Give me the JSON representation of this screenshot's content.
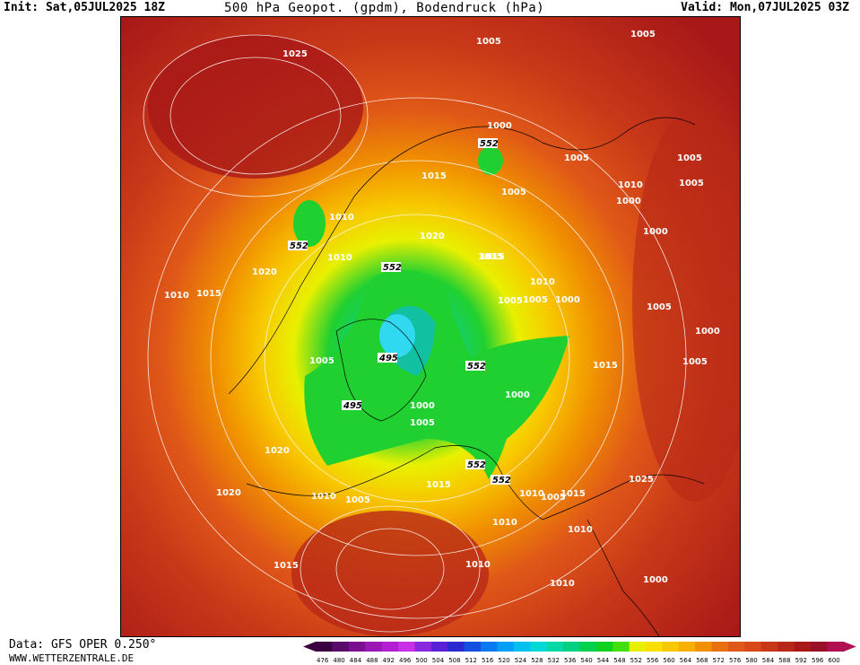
{
  "header": {
    "init": "Init: Sat,05JUL2025 18Z",
    "title": "500 hPa Geopot. (gpdm), Bodendruck (hPa)",
    "valid": "Valid: Mon,07JUL2025 03Z"
  },
  "footer": {
    "data_source": "Data: GFS OPER 0.250°",
    "website": "WWW.WETTERZENTRALE.DE"
  },
  "map": {
    "pressure_labels": [
      "1025",
      "1005",
      "1005",
      "1000",
      "1005",
      "1005",
      "1005",
      "1010",
      "1015",
      "1005",
      "1000",
      "1010",
      "1020",
      "1015",
      "1000",
      "1010",
      "1015",
      "1005",
      "1020",
      "1010",
      "1005",
      "1000",
      "1015",
      "1010",
      "1005",
      "1000",
      "1005",
      "1005",
      "1000",
      "1000",
      "1015",
      "1005",
      "1020",
      "1010",
      "1015",
      "1020",
      "1010",
      "1005",
      "1015",
      "1010",
      "1005",
      "1025",
      "1015",
      "1010",
      "1010",
      "1010",
      "1000"
    ],
    "geopotential_labels": [
      "552",
      "552",
      "552",
      "552",
      "552",
      "552",
      "495",
      "495"
    ]
  },
  "legend": {
    "values": [
      "476",
      "480",
      "484",
      "488",
      "492",
      "496",
      "500",
      "504",
      "508",
      "512",
      "516",
      "520",
      "524",
      "528",
      "532",
      "536",
      "540",
      "544",
      "548",
      "552",
      "556",
      "560",
      "564",
      "568",
      "572",
      "576",
      "580",
      "584",
      "588",
      "592",
      "596",
      "600"
    ],
    "colors": [
      "#3a0040",
      "#5a0a6a",
      "#7a1090",
      "#9a18b4",
      "#b41ed2",
      "#c830e8",
      "#8a28e0",
      "#5a20d8",
      "#2a28d0",
      "#1450e0",
      "#0a78f0",
      "#00a0f8",
      "#00c0f0",
      "#00d8d8",
      "#00d8a8",
      "#00d080",
      "#00d050",
      "#10d020",
      "#40e010",
      "#e8f000",
      "#f8e000",
      "#f8c800",
      "#f8b000",
      "#f09000",
      "#e87010",
      "#e05818",
      "#d84818",
      "#c83818",
      "#b82818",
      "#a81818",
      "#981028",
      "#b01050"
    ]
  }
}
